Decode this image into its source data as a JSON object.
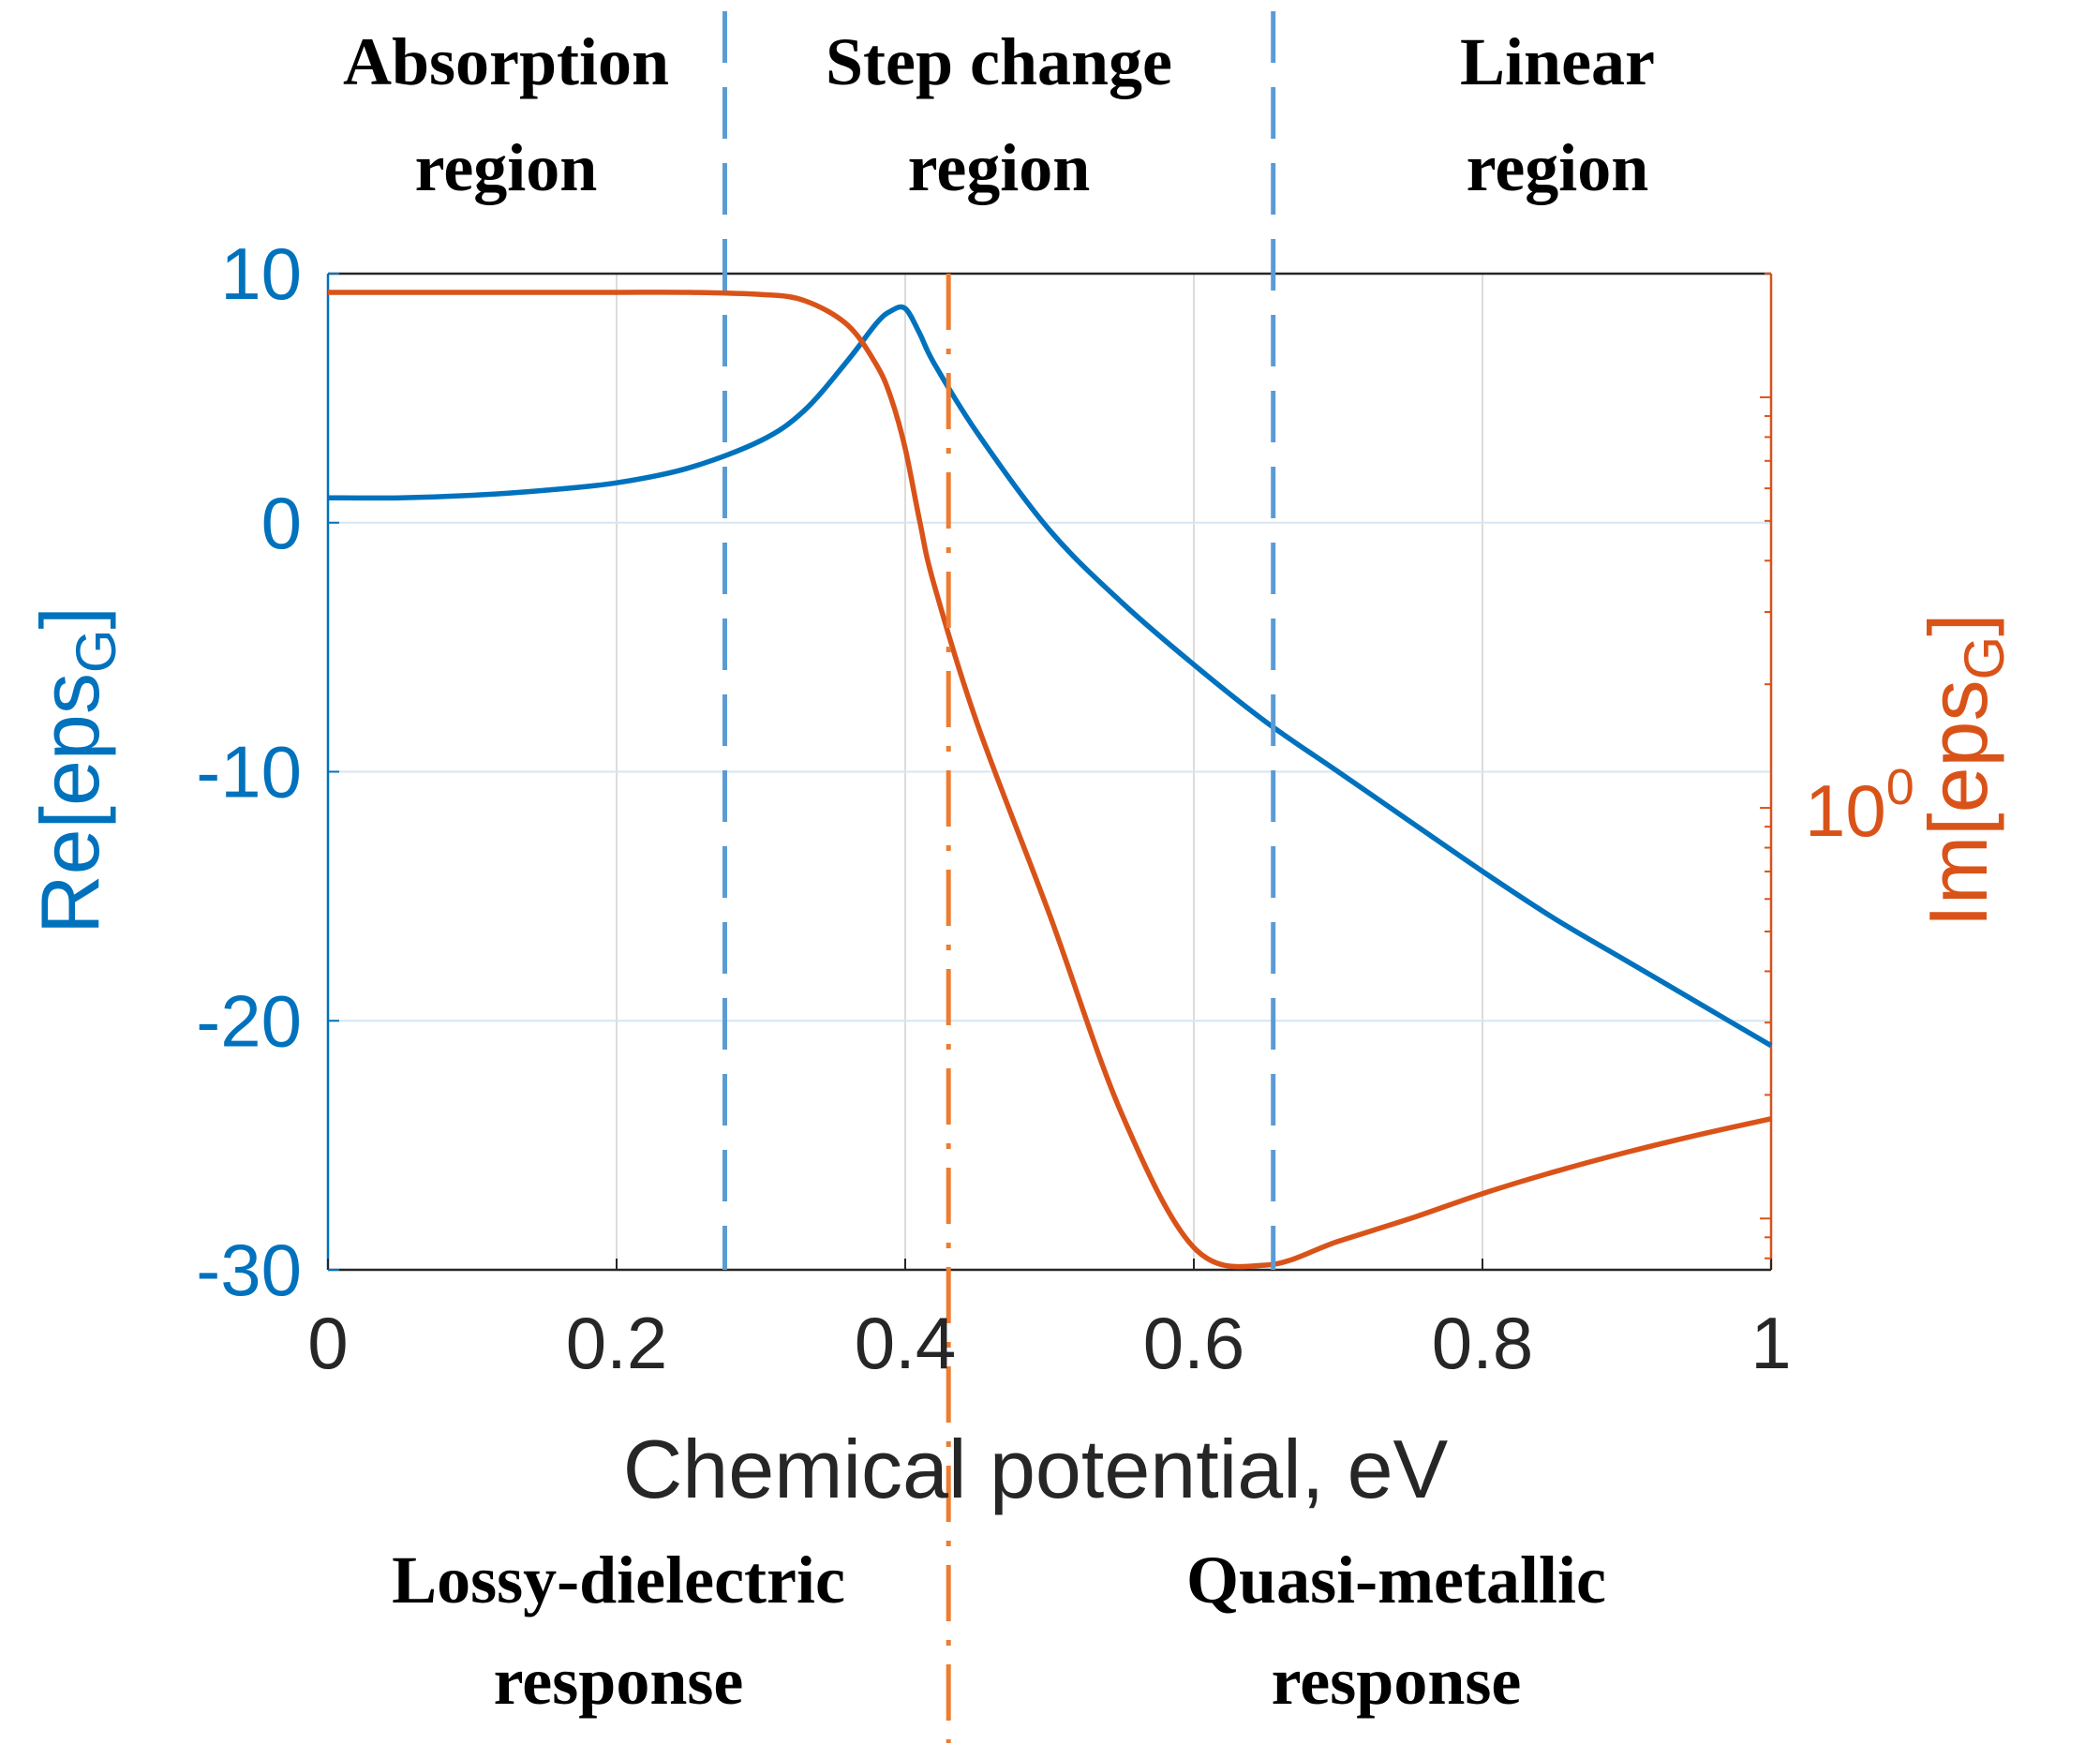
{
  "chart_data": {
    "type": "line",
    "x": [
      0,
      0.05,
      0.1,
      0.15,
      0.2,
      0.25,
      0.3,
      0.33,
      0.36,
      0.38,
      0.39,
      0.4,
      0.41,
      0.42,
      0.45,
      0.5,
      0.55,
      0.6,
      0.65,
      0.7,
      0.75,
      0.8,
      0.85,
      0.9,
      0.95,
      1.0
    ],
    "series": [
      {
        "name": "Re[eps_G]",
        "axis": "left",
        "color": "#0072BD",
        "values": [
          1.0,
          1.0,
          1.1,
          1.3,
          1.6,
          2.2,
          3.3,
          4.5,
          6.5,
          8.0,
          8.5,
          8.6,
          7.6,
          6.4,
          3.6,
          -0.3,
          -3.2,
          -5.7,
          -8.0,
          -10.0,
          -12.0,
          -14.0,
          -15.9,
          -17.6,
          -19.3,
          -21.0
        ]
      },
      {
        "name": "Im[eps_G]",
        "axis": "right",
        "color": "#D95319",
        "values": [
          18.0,
          18.0,
          18.0,
          18.0,
          18.0,
          18.0,
          17.8,
          17.2,
          15.0,
          12.0,
          10.0,
          7.5,
          5.0,
          3.5,
          1.6,
          0.55,
          0.18,
          0.085,
          0.077,
          0.088,
          0.1,
          0.115,
          0.13,
          0.145,
          0.16,
          0.175
        ]
      }
    ],
    "title": "",
    "xlabel": "Chemical potential, eV",
    "ylabel_left": "Re[eps",
    "ylabel_left_sub": "G",
    "ylabel_left_close": "]",
    "ylabel_right": "Im[eps",
    "ylabel_right_sub": "G",
    "ylabel_right_close": "]",
    "xlim": [
      0,
      1
    ],
    "ylim_left": [
      -30,
      10
    ],
    "ylim_right_log": [
      0.075,
      20
    ],
    "x_ticks": [
      0,
      0.2,
      0.4,
      0.6,
      0.8,
      1
    ],
    "x_tick_labels": [
      "0",
      "0.2",
      "0.4",
      "0.6",
      "0.8",
      "1"
    ],
    "y_left_ticks": [
      10,
      0,
      -10,
      -20,
      -30
    ],
    "y_left_tick_labels": [
      "10",
      "0",
      "-10",
      "-20",
      "-30"
    ],
    "y_right_ticks": [
      1
    ],
    "y_right_tick_labels": [
      {
        "base": "10",
        "exp": "0"
      }
    ],
    "grid": true,
    "vlines": [
      {
        "x": 0.275,
        "style": "dashed",
        "color": "#5B9BD5"
      },
      {
        "x": 0.655,
        "style": "dashed",
        "color": "#5B9BD5"
      },
      {
        "x": 0.43,
        "style": "dashdot",
        "color": "#ED7D31"
      }
    ],
    "annotations": {
      "top": [
        {
          "line1": "Absorption",
          "line2": "region"
        },
        {
          "line1": "Step change",
          "line2": "region"
        },
        {
          "line1": "Linear",
          "line2": "region"
        }
      ],
      "bottom": [
        {
          "line1": "Lossy-dielectric",
          "line2": "response"
        },
        {
          "line1": "Quasi-metallic",
          "line2": "response"
        }
      ]
    }
  }
}
